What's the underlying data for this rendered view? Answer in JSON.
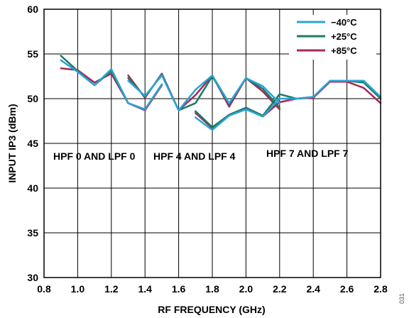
{
  "chart_data": {
    "type": "line",
    "xlabel": "RF FREQUENCY (GHz)",
    "ylabel": "INPUT IP3 (dBm)",
    "xlim": [
      0.8,
      2.8
    ],
    "ylim": [
      30,
      60
    ],
    "xticks": [
      "0.8",
      "1.0",
      "1.2",
      "1.4",
      "1.6",
      "1.8",
      "2.0",
      "2.2",
      "2.4",
      "2.6",
      "2.8"
    ],
    "yticks": [
      "30",
      "35",
      "40",
      "45",
      "50",
      "55",
      "60"
    ],
    "grid": true,
    "legend_position": "top-right",
    "annotations": [
      "HPF 0 AND LPF 0",
      "HPF 4 AND LPF 4",
      "HPF 7 AND LPF 7"
    ],
    "figure_id": "031",
    "series": [
      {
        "name": "−40°C",
        "color": "#2aa4d4",
        "segments": [
          {
            "x": [
              0.9,
              1.0,
              1.1,
              1.2,
              1.3,
              1.4,
              1.5
            ],
            "y": [
              54.3,
              53.0,
              51.5,
              53.3,
              49.5,
              48.8,
              51.6
            ]
          },
          {
            "x": [
              1.3,
              1.4,
              1.5,
              1.6,
              1.7,
              1.8,
              1.9,
              2.0,
              2.1,
              2.2
            ],
            "y": [
              52.0,
              50.3,
              52.6,
              48.7,
              51.0,
              52.6,
              49.5,
              52.3,
              51.4,
              49.5
            ]
          },
          {
            "x": [
              1.7,
              1.8,
              1.9,
              2.0,
              2.1,
              2.2,
              2.3,
              2.4,
              2.5,
              2.6,
              2.7,
              2.8
            ],
            "y": [
              47.9,
              46.5,
              48.1,
              48.8,
              48.0,
              50.0,
              50.0,
              50.2,
              52.0,
              52.0,
              52.0,
              50.2
            ]
          }
        ]
      },
      {
        "name": "+25°C",
        "color": "#1d7a66",
        "segments": [
          {
            "x": [
              0.9,
              1.0,
              1.1,
              1.2,
              1.3,
              1.4,
              1.5
            ],
            "y": [
              54.8,
              53.1,
              51.5,
              53.1,
              49.5,
              48.8,
              51.6
            ]
          },
          {
            "x": [
              1.3,
              1.4,
              1.5,
              1.6,
              1.7,
              1.8,
              1.9,
              2.0,
              2.1,
              2.2
            ],
            "y": [
              52.3,
              50.2,
              52.7,
              48.7,
              49.5,
              52.5,
              49.4,
              52.3,
              51.1,
              49.0
            ]
          },
          {
            "x": [
              1.7,
              1.8,
              1.9,
              2.0,
              2.1,
              2.2,
              2.3,
              2.4,
              2.5,
              2.6,
              2.7,
              2.8
            ],
            "y": [
              48.6,
              46.8,
              48.2,
              49.0,
              48.1,
              50.5,
              50.0,
              50.2,
              52.0,
              52.0,
              51.8,
              50.0
            ]
          }
        ]
      },
      {
        "name": "+85°C",
        "color": "#a8275a",
        "segments": [
          {
            "x": [
              0.9,
              1.0,
              1.1,
              1.2,
              1.3,
              1.4,
              1.5
            ],
            "y": [
              53.4,
              53.2,
              51.8,
              52.8,
              49.5,
              48.7,
              51.5
            ]
          },
          {
            "x": [
              1.3,
              1.4,
              1.5,
              1.6,
              1.7,
              1.8,
              1.9,
              2.0,
              2.1,
              2.2
            ],
            "y": [
              52.6,
              50.1,
              52.8,
              48.7,
              50.4,
              52.6,
              49.1,
              52.3,
              50.8,
              48.8
            ]
          },
          {
            "x": [
              1.7,
              1.8,
              1.9,
              2.0,
              2.1,
              2.2,
              2.3,
              2.4,
              2.5,
              2.6,
              2.7,
              2.8
            ],
            "y": [
              48.4,
              46.7,
              48.2,
              48.9,
              48.0,
              49.6,
              50.0,
              50.1,
              51.9,
              51.9,
              51.2,
              49.5
            ]
          }
        ]
      }
    ]
  }
}
